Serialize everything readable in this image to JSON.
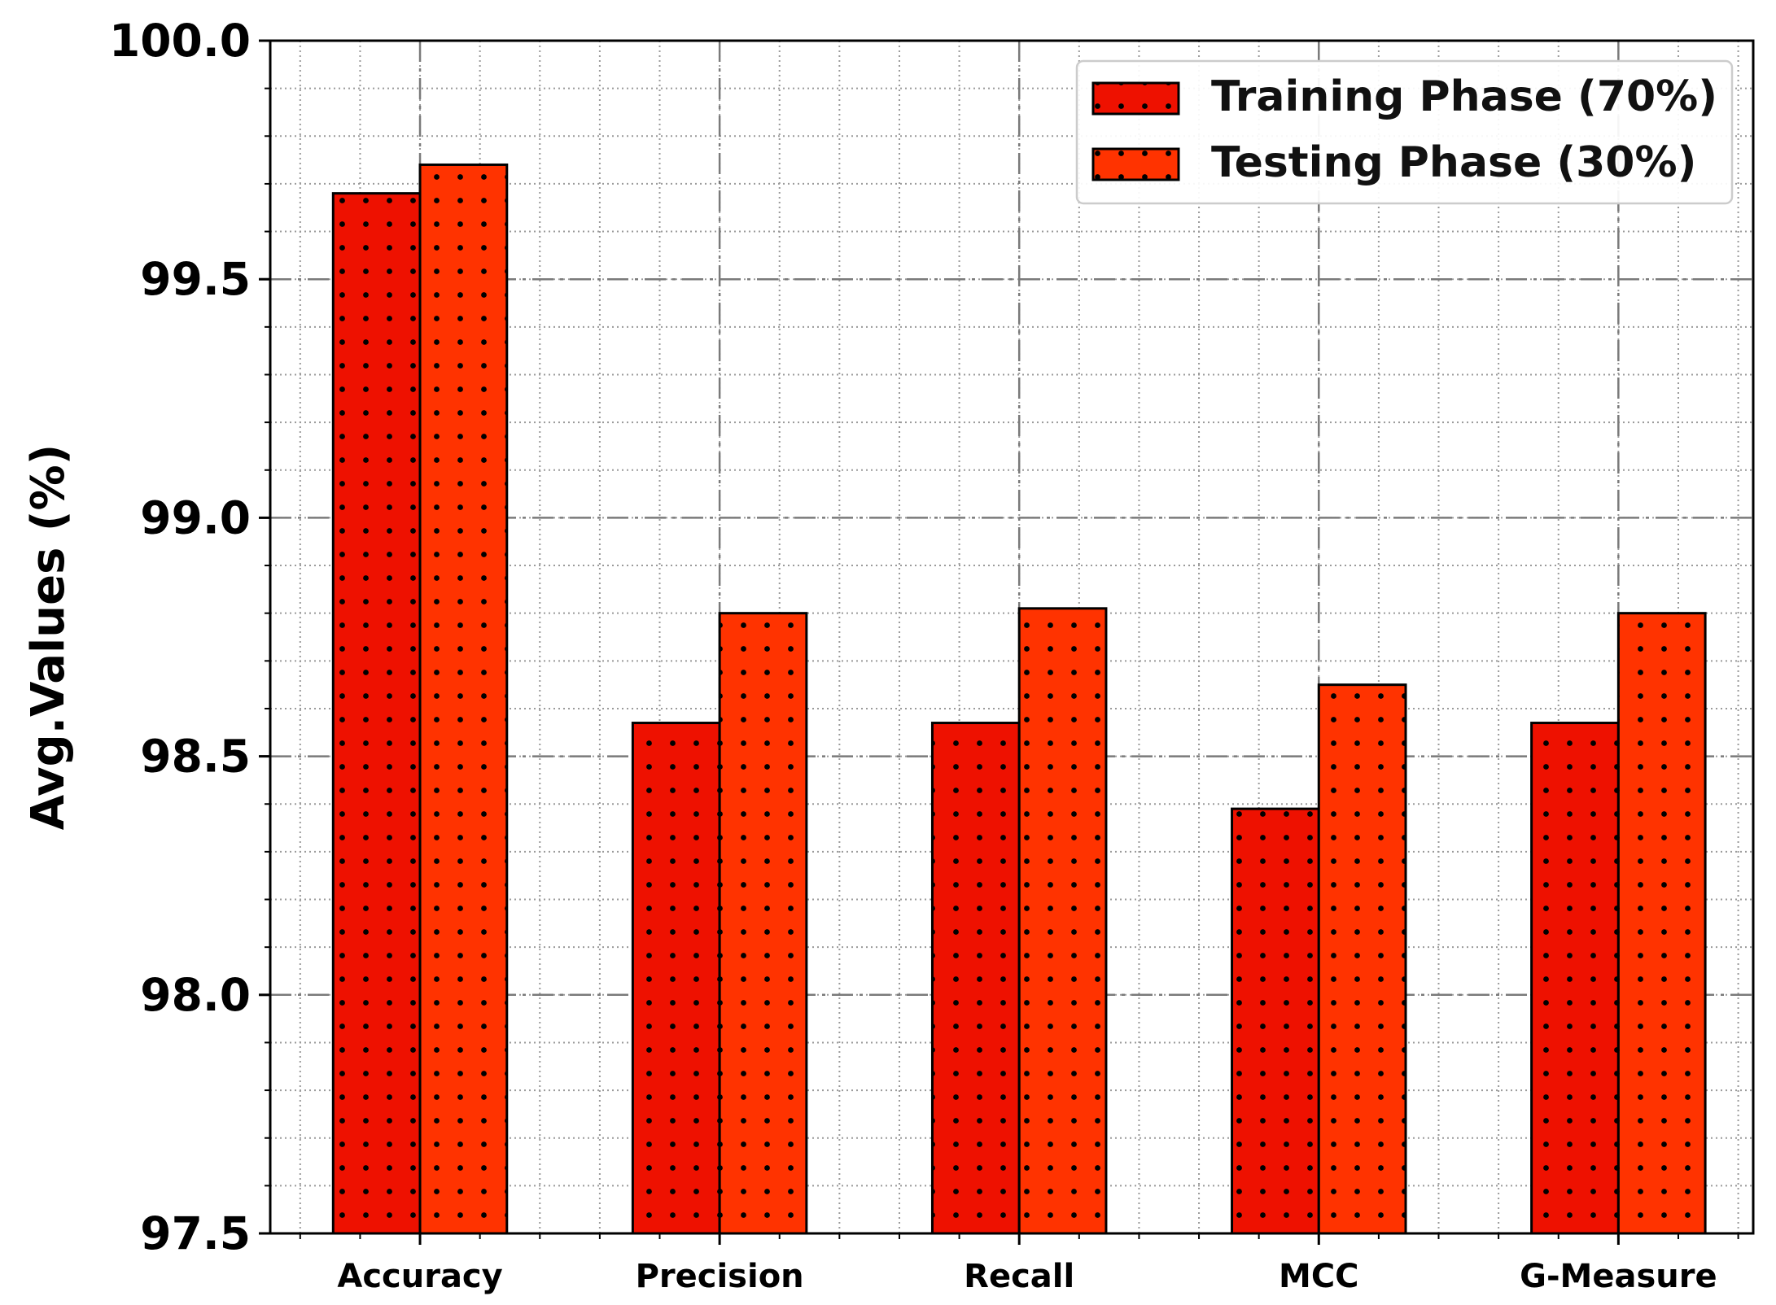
{
  "chart_data": {
    "type": "bar",
    "categories": [
      "Accuracy",
      "Precision",
      "Recall",
      "MCC",
      "G-Measure"
    ],
    "series": [
      {
        "name": "Training Phase (70%)",
        "values": [
          99.68,
          98.57,
          98.57,
          98.39,
          98.57
        ],
        "color": "#ee1100"
      },
      {
        "name": "Testing Phase (30%)",
        "values": [
          99.74,
          98.8,
          98.81,
          98.65,
          98.8
        ],
        "color": "#ff3300"
      }
    ],
    "title": "",
    "xlabel": "",
    "ylabel": "Avg.Values (%)",
    "ylim": [
      97.5,
      100.0
    ],
    "yticks": [
      "97.5",
      "98.0",
      "98.5",
      "99.0",
      "99.5",
      "100.0"
    ],
    "grid": true,
    "legend": "top-right",
    "hatch": "dots"
  }
}
